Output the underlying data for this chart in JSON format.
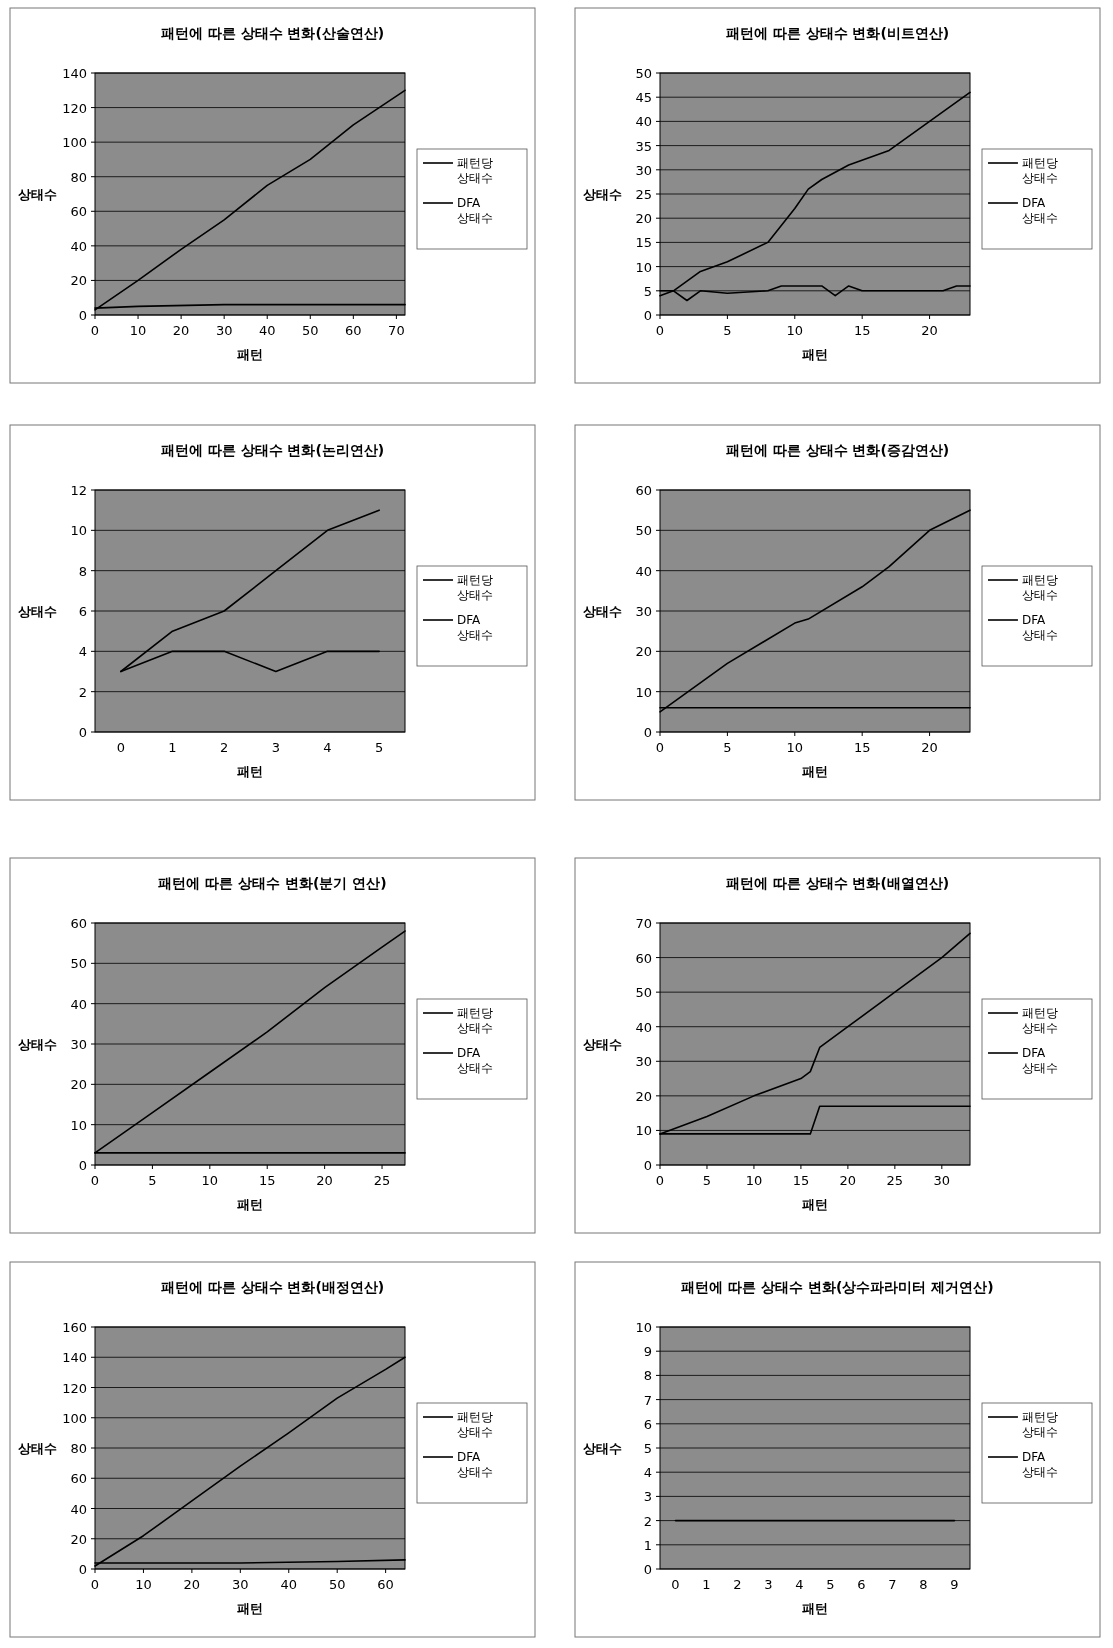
{
  "chart_data": [
    {
      "type": "line",
      "title": "패턴에 따른 상태수 변화(산술연산)",
      "xlabel": "패턴",
      "ylabel": "상태수",
      "xlim": [
        0,
        72
      ],
      "xticks": [
        0,
        10,
        20,
        30,
        40,
        50,
        60,
        70
      ],
      "ylim": [
        0,
        140
      ],
      "yticks": [
        0,
        20,
        40,
        60,
        80,
        100,
        120,
        140
      ],
      "grid": "y",
      "legend": "right",
      "series": [
        {
          "name": "패턴당 상태수",
          "color": "#000000",
          "x": [
            0,
            10,
            30,
            50,
            72
          ],
          "values": [
            4,
            5,
            6,
            6,
            6
          ]
        },
        {
          "name": "DFA 상태수",
          "color": "#000000",
          "x": [
            0,
            10,
            20,
            30,
            40,
            50,
            60,
            72
          ],
          "values": [
            3,
            20,
            38,
            55,
            75,
            90,
            110,
            130
          ]
        }
      ]
    },
    {
      "type": "line",
      "title": "패턴에 따른 상태수 변화(비트연산)",
      "xlabel": "패턴",
      "ylabel": "상태수",
      "xlim": [
        0,
        23
      ],
      "xticks": [
        0,
        5,
        10,
        15,
        20
      ],
      "ylim": [
        0,
        50
      ],
      "yticks": [
        0,
        5,
        10,
        15,
        20,
        25,
        30,
        35,
        40,
        45,
        50
      ],
      "grid": "y",
      "legend": "right",
      "series": [
        {
          "name": "패턴당 상태수",
          "color": "#000000",
          "x": [
            0,
            1,
            2,
            3,
            5,
            8,
            9,
            12,
            13,
            14,
            15,
            20,
            21,
            22,
            23
          ],
          "values": [
            5,
            5,
            3,
            5,
            4.5,
            5,
            6,
            6,
            4,
            6,
            5,
            5,
            5,
            6,
            6
          ]
        },
        {
          "name": "DFA 상태수",
          "color": "#000000",
          "x": [
            0,
            1,
            2,
            3,
            5,
            8,
            10,
            11,
            12,
            14,
            17,
            20,
            23
          ],
          "values": [
            4,
            5,
            7,
            9,
            11,
            15,
            22,
            26,
            28,
            31,
            34,
            40,
            46
          ]
        }
      ]
    },
    {
      "type": "line",
      "title": "패턴에 따른 상태수 변화(논리연산)",
      "xlabel": "패턴",
      "ylabel": "상태수",
      "categories": [
        "0",
        "1",
        "2",
        "3",
        "4",
        "5"
      ],
      "ylim": [
        0,
        12
      ],
      "yticks": [
        0,
        2,
        4,
        6,
        8,
        10,
        12
      ],
      "grid": "y",
      "legend": "right",
      "series": [
        {
          "name": "패턴당 상태수",
          "color": "#000000",
          "values": [
            3,
            4,
            4,
            3,
            4,
            4
          ]
        },
        {
          "name": "DFA 상태수",
          "color": "#000000",
          "values": [
            3,
            5,
            6,
            8,
            10,
            11
          ]
        }
      ]
    },
    {
      "type": "line",
      "title": "패턴에 따른 상태수 변화(증감연산)",
      "xlabel": "패턴",
      "ylabel": "상태수",
      "xlim": [
        0,
        23
      ],
      "xticks": [
        0,
        5,
        10,
        15,
        20
      ],
      "ylim": [
        0,
        60
      ],
      "yticks": [
        0,
        10,
        20,
        30,
        40,
        50,
        60
      ],
      "grid": "y",
      "legend": "right",
      "series": [
        {
          "name": "패턴당 상태수",
          "color": "#000000",
          "x": [
            0,
            10,
            23
          ],
          "values": [
            6,
            6,
            6
          ]
        },
        {
          "name": "DFA 상태수",
          "color": "#000000",
          "x": [
            0,
            5,
            10,
            11,
            15,
            17,
            20,
            23
          ],
          "values": [
            5,
            17,
            27,
            28,
            36,
            41,
            50,
            55
          ]
        }
      ]
    },
    {
      "type": "line",
      "title": "패턴에 따른 상태수 변화(분기 연산)",
      "xlabel": "패턴",
      "ylabel": "상태수",
      "xlim": [
        0,
        27
      ],
      "xticks": [
        0,
        5,
        10,
        15,
        20,
        25
      ],
      "ylim": [
        0,
        60
      ],
      "yticks": [
        0,
        10,
        20,
        30,
        40,
        50,
        60
      ],
      "grid": "y",
      "legend": "right",
      "series": [
        {
          "name": "패턴당 상태수",
          "color": "#000000",
          "x": [
            0,
            27
          ],
          "values": [
            3,
            3
          ]
        },
        {
          "name": "DFA 상태수",
          "color": "#000000",
          "x": [
            0,
            5,
            10,
            15,
            20,
            25,
            27
          ],
          "values": [
            3,
            13,
            23,
            33,
            44,
            54,
            58
          ]
        }
      ]
    },
    {
      "type": "line",
      "title": "패턴에 따른 상태수 변화(배열연산)",
      "xlabel": "패턴",
      "ylabel": "상태수",
      "xlim": [
        0,
        33
      ],
      "xticks": [
        0,
        5,
        10,
        15,
        20,
        25,
        30
      ],
      "ylim": [
        0,
        70
      ],
      "yticks": [
        0,
        10,
        20,
        30,
        40,
        50,
        60,
        70
      ],
      "grid": "y",
      "legend": "right",
      "series": [
        {
          "name": "패턴당 상태수",
          "color": "#000000",
          "x": [
            0,
            16,
            17,
            33
          ],
          "values": [
            9,
            9,
            17,
            17
          ]
        },
        {
          "name": "DFA 상태수",
          "color": "#000000",
          "x": [
            0,
            5,
            10,
            15,
            16,
            17,
            20,
            25,
            30,
            33
          ],
          "values": [
            9,
            14,
            20,
            25,
            27,
            34,
            40,
            50,
            60,
            67
          ]
        }
      ]
    },
    {
      "type": "line",
      "title": "패턴에 따른 상태수 변화(배정연산)",
      "xlabel": "패턴",
      "ylabel": "상태수",
      "xlim": [
        0,
        64
      ],
      "xticks": [
        0,
        10,
        20,
        30,
        40,
        50,
        60
      ],
      "ylim": [
        0,
        160
      ],
      "yticks": [
        0,
        20,
        40,
        60,
        80,
        100,
        120,
        140,
        160
      ],
      "grid": "y",
      "legend": "right",
      "series": [
        {
          "name": "패턴당 상태수",
          "color": "#000000",
          "x": [
            0,
            30,
            50,
            64
          ],
          "values": [
            4,
            4,
            5,
            6
          ]
        },
        {
          "name": "DFA 상태수",
          "color": "#000000",
          "x": [
            0,
            10,
            20,
            30,
            40,
            50,
            60,
            64
          ],
          "values": [
            2,
            22,
            45,
            68,
            90,
            113,
            132,
            140
          ]
        }
      ]
    },
    {
      "type": "line",
      "title": "패턴에 따른 상태수 변화(상수파라미터 제거연산)",
      "xlabel": "패턴",
      "ylabel": "상태수",
      "categories": [
        "0",
        "1",
        "2",
        "3",
        "4",
        "5",
        "6",
        "7",
        "8",
        "9"
      ],
      "ylim": [
        0,
        10
      ],
      "yticks": [
        0,
        1,
        2,
        3,
        4,
        5,
        6,
        7,
        8,
        9,
        10
      ],
      "grid": "y",
      "legend": "right",
      "series": [
        {
          "name": "패턴당 상태수",
          "color": "#000000",
          "values": [
            2,
            2,
            2,
            2,
            2,
            2,
            2,
            2,
            2,
            2
          ]
        },
        {
          "name": "DFA 상태수",
          "color": "#000000",
          "values": [
            null,
            null,
            null,
            null,
            null,
            null,
            null,
            null,
            null,
            null
          ]
        }
      ]
    }
  ]
}
